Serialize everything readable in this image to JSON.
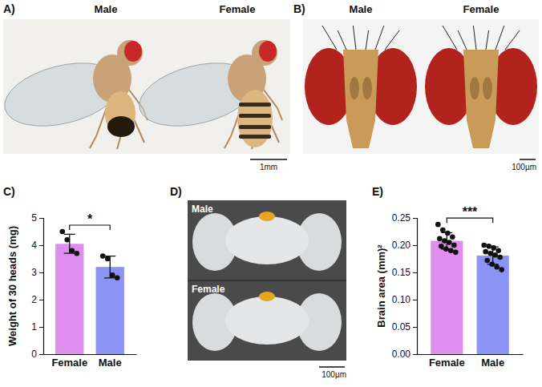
{
  "figure": {
    "panels": [
      {
        "letter": "A)",
        "labels": [
          "Male",
          "Female"
        ],
        "scale_bar": "1mm"
      },
      {
        "letter": "B)",
        "labels": [
          "Male",
          "Female"
        ],
        "scale_bar": "100µm"
      },
      {
        "letter": "C)"
      },
      {
        "letter": "D)",
        "labels": [
          "Male",
          "Female"
        ],
        "scale_bar": "100µm"
      },
      {
        "letter": "E)"
      }
    ]
  },
  "chart_data": [
    {
      "type": "bar",
      "categories": [
        "Female",
        "Male"
      ],
      "values": [
        4.05,
        3.2
      ],
      "errors": [
        0.35,
        0.4
      ],
      "points": [
        [
          4.5,
          4.2,
          3.8,
          3.7
        ],
        [
          3.6,
          3.5,
          2.9,
          2.8
        ]
      ],
      "colors": [
        "#df8ef0",
        "#8b93f5"
      ],
      "ylabel": "Weight of 30 heads (mg)",
      "ylim": [
        0,
        5
      ],
      "yticks": [
        0,
        1,
        2,
        3,
        4,
        5
      ],
      "annotation": "*"
    },
    {
      "type": "bar",
      "categories": [
        "Female",
        "Male"
      ],
      "values": [
        0.208,
        0.181
      ],
      "errors": [
        0.015,
        0.016
      ],
      "points": [
        [
          0.238,
          0.228,
          0.222,
          0.215,
          0.212,
          0.208,
          0.205,
          0.2,
          0.198,
          0.193,
          0.19,
          0.187
        ],
        [
          0.2,
          0.198,
          0.195,
          0.19,
          0.188,
          0.185,
          0.182,
          0.178,
          0.172,
          0.165,
          0.16,
          0.155
        ]
      ],
      "colors": [
        "#df8ef0",
        "#8b93f5"
      ],
      "ylabel": "Brain area (mm)²",
      "ylim": [
        0,
        0.25
      ],
      "yticks": [
        {
          "value": 0,
          "label": "0.00"
        },
        {
          "value": 0.05,
          "label": "0.05"
        },
        {
          "value": 0.1,
          "label": "0.10"
        },
        {
          "value": 0.15,
          "label": "0.15"
        },
        {
          "value": 0.2,
          "label": "0.20"
        },
        {
          "value": 0.25,
          "label": "0.25"
        }
      ],
      "annotation": "***"
    }
  ]
}
